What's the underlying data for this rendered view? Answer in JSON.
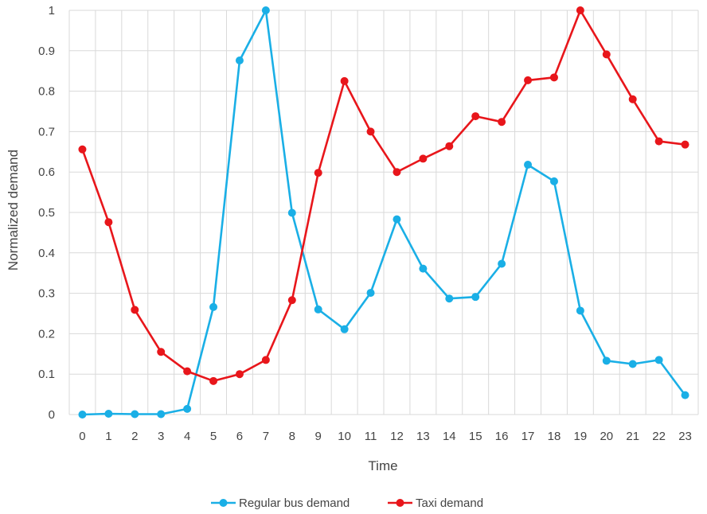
{
  "chart_data": {
    "type": "line",
    "x": [
      0,
      1,
      2,
      3,
      4,
      5,
      6,
      7,
      8,
      9,
      10,
      11,
      12,
      13,
      14,
      15,
      16,
      17,
      18,
      19,
      20,
      21,
      22,
      23
    ],
    "xlabel": "Time",
    "ylabel": "Normalized demand",
    "ylim": [
      0,
      1
    ],
    "yticks": [
      0,
      0.1,
      0.2,
      0.3,
      0.4,
      0.5,
      0.6,
      0.7,
      0.8,
      0.9,
      1
    ],
    "grid": true,
    "legend": "bottom",
    "series": [
      {
        "name": "Regular bus demand",
        "color": "#1AAFE6",
        "values": [
          0.0,
          0.002,
          0.001,
          0.001,
          0.014,
          0.266,
          0.876,
          1.0,
          0.499,
          0.26,
          0.211,
          0.301,
          0.483,
          0.361,
          0.287,
          0.291,
          0.373,
          0.618,
          0.577,
          0.257,
          0.133,
          0.125,
          0.135,
          0.048
        ]
      },
      {
        "name": "Taxi demand",
        "color": "#E8161B",
        "values": [
          0.656,
          0.476,
          0.259,
          0.155,
          0.107,
          0.083,
          0.1,
          0.135,
          0.283,
          0.598,
          0.825,
          0.7,
          0.6,
          0.633,
          0.664,
          0.738,
          0.724,
          0.827,
          0.834,
          1.0,
          0.891,
          0.78,
          0.676,
          0.668
        ]
      }
    ]
  }
}
